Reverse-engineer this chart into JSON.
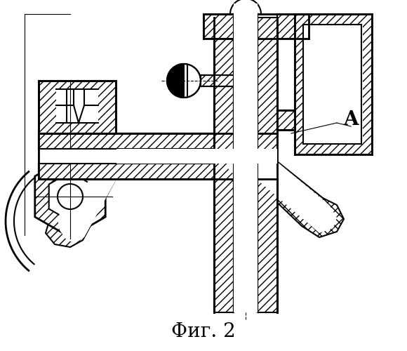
{
  "title": "Фиг. 2",
  "title_fontsize": 20,
  "bg_color": "#ffffff",
  "line_color": "#000000",
  "label_A": "A",
  "fig_width": 5.8,
  "fig_height": 5.0,
  "dpi": 100
}
